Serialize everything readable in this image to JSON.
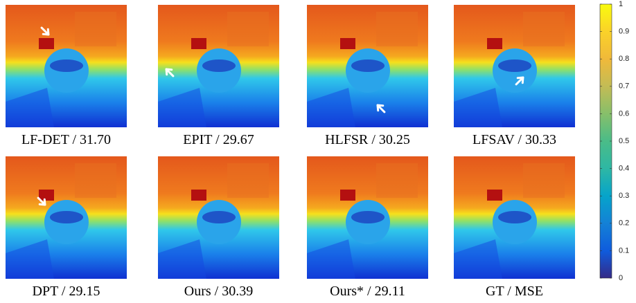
{
  "panels": [
    {
      "caption": "LF-DET / 31.70"
    },
    {
      "caption": "EPIT / 29.67"
    },
    {
      "caption": "HLFSR / 30.25"
    },
    {
      "caption": "LFSAV / 30.33"
    },
    {
      "caption": "DPT / 29.15"
    },
    {
      "caption": "Ours / 30.39"
    },
    {
      "caption": "Ours* / 29.11"
    },
    {
      "caption": "GT / MSE"
    }
  ],
  "colorbar": {
    "lim": [
      0,
      1
    ],
    "ticks": [
      0,
      0.1,
      0.2,
      0.3,
      0.4,
      0.5,
      0.6,
      0.7,
      0.8,
      0.9,
      1
    ]
  }
}
